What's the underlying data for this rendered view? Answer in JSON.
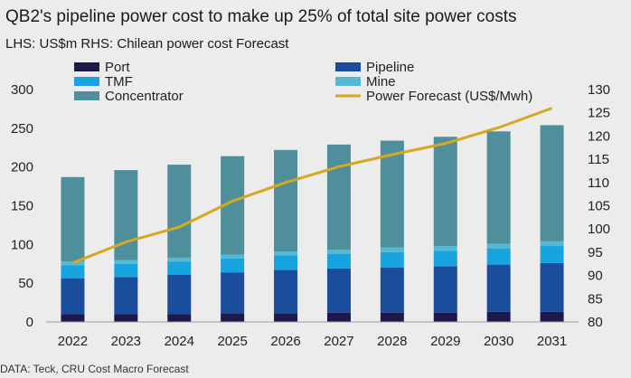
{
  "header": {
    "title": "QB2's pipeline power cost to make up 25% of total site power costs",
    "subtitle": "LHS: US$m RHS: Chilean power cost Forecast"
  },
  "footer": {
    "source": "DATA: Teck, CRU Cost Macro Forecast"
  },
  "colors": {
    "port": "#1c1a4a",
    "pipeline": "#1a4e9c",
    "tmf": "#16a3e0",
    "mine": "#55b9d4",
    "concentrator": "#4f8f9c",
    "power_line": "#d6a820",
    "background": "#ececec"
  },
  "chart_data": {
    "type": "bar",
    "stacked": true,
    "categories": [
      "2022",
      "2023",
      "2024",
      "2025",
      "2026",
      "2027",
      "2028",
      "2029",
      "2030",
      "2031"
    ],
    "series": [
      {
        "name": "Port",
        "color": "#1c1a4a",
        "values": [
          10,
          10,
          10,
          11,
          11,
          12,
          12,
          12,
          13,
          13
        ]
      },
      {
        "name": "Pipeline",
        "color": "#1a4e9c",
        "values": [
          46,
          48,
          51,
          53,
          56,
          57,
          58,
          60,
          61,
          63
        ]
      },
      {
        "name": "TMF",
        "color": "#16a3e0",
        "values": [
          17,
          17,
          17,
          18,
          19,
          19,
          20,
          20,
          21,
          22
        ]
      },
      {
        "name": "Mine",
        "color": "#55b9d4",
        "values": [
          5,
          5,
          5,
          5,
          5,
          5,
          6,
          6,
          6,
          6
        ]
      },
      {
        "name": "Concentrator",
        "color": "#4f8f9c",
        "values": [
          109,
          116,
          120,
          127,
          131,
          136,
          138,
          141,
          145,
          150
        ]
      }
    ],
    "line_series": {
      "name": "Power Forecast (US$/Mwh)",
      "color": "#d6a820",
      "axis": "right",
      "values": [
        92.7,
        97.2,
        100.4,
        106,
        110,
        113.4,
        116,
        118.4,
        121.8,
        126
      ]
    },
    "y_left": {
      "min": 0,
      "max": 300,
      "ticks": [
        "0",
        "50",
        "100",
        "150",
        "200",
        "250",
        "300"
      ]
    },
    "y_right": {
      "min": 80,
      "max": 130,
      "ticks": [
        "80",
        "85",
        "90",
        "95",
        "100",
        "105",
        "110",
        "115",
        "120",
        "125",
        "130"
      ]
    },
    "legend": [
      {
        "label": "Port",
        "kind": "box",
        "color": "#1c1a4a"
      },
      {
        "label": "Pipeline",
        "kind": "box",
        "color": "#1a4e9c"
      },
      {
        "label": "TMF",
        "kind": "box",
        "color": "#16a3e0"
      },
      {
        "label": "Mine",
        "kind": "box",
        "color": "#55b9d4"
      },
      {
        "label": "Concentrator",
        "kind": "box",
        "color": "#4f8f9c"
      },
      {
        "label": "Power Forecast (US$/Mwh)",
        "kind": "line",
        "color": "#d6a820"
      }
    ],
    "legend_position": "top",
    "grid": false
  }
}
